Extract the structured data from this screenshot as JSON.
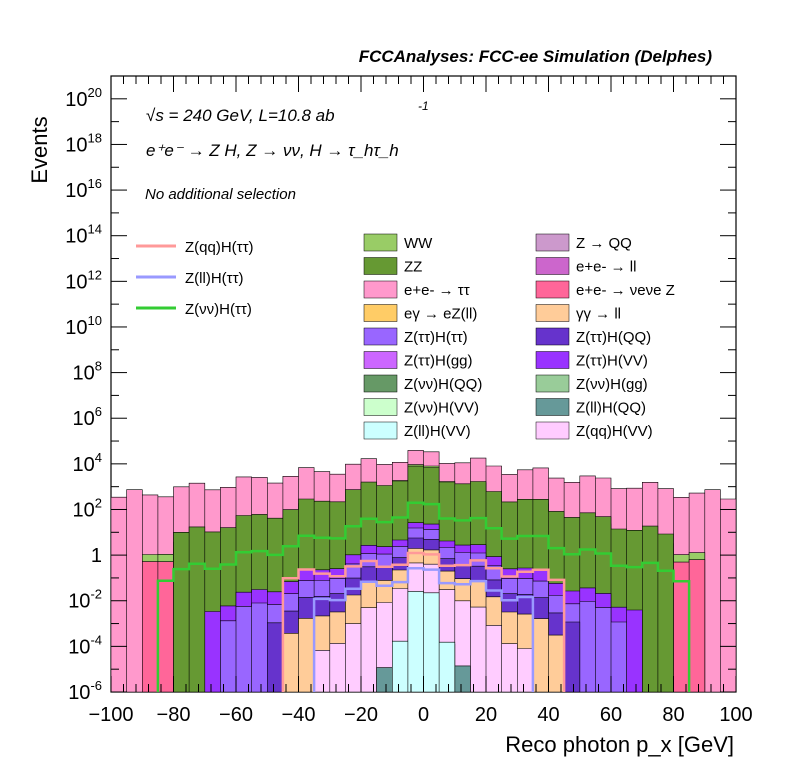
{
  "header": {
    "title": "FCCAnalyses: FCC-ee Simulation (Delphes)",
    "energy_line": "√s = 240 GeV, L=10.8 ab",
    "energy_exp": "-1",
    "process_line": "e⁺e⁻ → Z H, Z → νν, H → τ_hτ_h",
    "selection": "No additional selection"
  },
  "colors": {
    "WW": "#99cc66",
    "ZZ": "#669933",
    "Z → QQ": "#cc99cc",
    "e+e- → ll": "#cc66cc",
    "e+e- → ττ": "#ff99cc",
    "e+e- → νeνe Z": "#ff6699",
    "eγ → eZ(ll)": "#ffcc66",
    "γγ → ll": "#ffcc99",
    "Z(ττ)H(ττ)": "#9966ff",
    "Z(ττ)H(QQ)": "#6633cc",
    "Z(ττ)H(gg)": "#cc66ff",
    "Z(ττ)H(VV)": "#9933ff",
    "Z(νν)H(QQ)": "#669966",
    "Z(νν)H(gg)": "#99cc99",
    "Z(νν)H(VV)": "#ccffcc",
    "Z(ll)H(QQ)": "#669999",
    "Z(ll)H(VV)": "#ccffff",
    "Z(qq)H(VV)": "#ffccff",
    "sig_qq": "#ff9999",
    "sig_ll": "#9999ff",
    "sig_vv": "#33cc33"
  },
  "chart_data": {
    "type": "histogram",
    "title": "FCCAnalyses: FCC-ee Simulation (Delphes)",
    "xlabel": "Reco photon p_x [GeV]",
    "ylabel": "Events",
    "xlim": [
      -100,
      100
    ],
    "ylim": [
      1e-06,
      1e+21
    ],
    "yscale": "log",
    "x_ticks": [
      "−100",
      "−80",
      "−60",
      "−40",
      "−20",
      "0",
      "20",
      "40",
      "60",
      "80",
      "100"
    ],
    "y_ticks": [
      "10^-6",
      "10^-4",
      "10^-2",
      "1",
      "10^2",
      "10^4",
      "10^6",
      "10^8",
      "10^10",
      "10^12",
      "10^14",
      "10^16",
      "10^18",
      "10^20"
    ],
    "legend_placement": "top",
    "signal_legend": [
      "Z(qq)H(ττ)",
      "Z(ll)H(ττ)",
      "Z(νν)H(ττ)"
    ],
    "background_legend_left": [
      "WW",
      "ZZ",
      "e+e- → ττ",
      "eγ → eZ(ll)",
      "Z(ττ)H(ττ)",
      "Z(ττ)H(gg)",
      "Z(νν)H(QQ)",
      "Z(νν)H(VV)",
      "Z(ll)H(VV)"
    ],
    "background_legend_right": [
      "Z → QQ",
      "e+e- → ll",
      "e+e- → νeνe Z",
      "γγ → ll",
      "Z(ττ)H(QQ)",
      "Z(ττ)H(VV)",
      "Z(νν)H(gg)",
      "Z(ll)H(QQ)",
      "Z(qq)H(VV)"
    ],
    "stack_layers_log10_top": [
      {
        "name": "e+e- → ττ",
        "shape": "wide",
        "center": 4.5,
        "edge": 2.5,
        "halfwidth": 100
      },
      {
        "name": "WW",
        "shape": "wide",
        "center": 4.0,
        "edge": 0.0,
        "halfwidth": 90
      },
      {
        "name": "e+e- → νeνe Z",
        "shape": "wide",
        "center": 3.3,
        "edge": -0.3,
        "halfwidth": 90
      },
      {
        "name": "ZZ",
        "shape": "wide",
        "center": 3.9,
        "edge": 0.8,
        "halfwidth": 80
      },
      {
        "name": "Z(ττ)H(VV)",
        "shape": "mid",
        "center": 1.5,
        "edge": -2.5,
        "halfwidth": 72
      },
      {
        "name": "Z(ττ)H(ττ)",
        "shape": "mid",
        "center": 1.3,
        "edge": -2.8,
        "halfwidth": 64
      },
      {
        "name": "Z(ττ)H(QQ)",
        "shape": "mid",
        "center": 0.9,
        "edge": -3.0,
        "halfwidth": 52
      },
      {
        "name": "γγ → ll",
        "shape": "mid",
        "center": 0.5,
        "edge": -3.5,
        "halfwidth": 44
      },
      {
        "name": "Z(qq)H(VV)",
        "shape": "narrow",
        "center": 0.0,
        "edge": -4.5,
        "halfwidth": 36
      },
      {
        "name": "Z(ll)H(QQ)",
        "shape": "narrow",
        "center": -1.5,
        "edge": -5.5,
        "halfwidth": 16
      },
      {
        "name": "Z(ll)H(VV)",
        "shape": "narrow",
        "center": -0.5,
        "edge": -5.0,
        "halfwidth": 12
      }
    ],
    "signal_lines_log10": [
      {
        "name": "Z(vv)H(ττ)",
        "center": 2.3,
        "edge": -1.0,
        "halfwidth": 86
      },
      {
        "name": "Z(qq)H(ττ)",
        "center": 0.0,
        "edge": -1.0,
        "halfwidth": 44
      },
      {
        "name": "Z(ll)H(ττ)",
        "center": -0.6,
        "edge": -2.0,
        "halfwidth": 36
      }
    ]
  }
}
